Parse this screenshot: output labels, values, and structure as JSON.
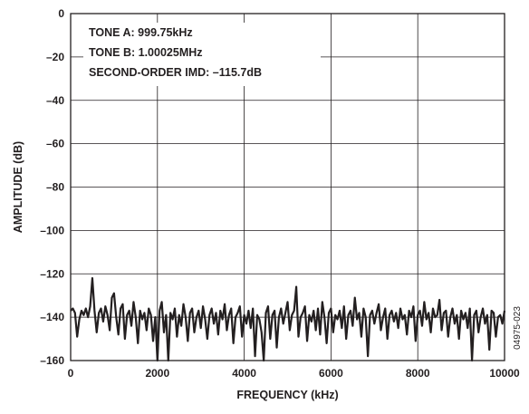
{
  "chart_data": {
    "type": "line",
    "title": "",
    "xlabel": "FREQUENCY (kHz)",
    "ylabel": "AMPLITUDE (dB)",
    "xlim": [
      0,
      10000
    ],
    "ylim": [
      -160,
      0
    ],
    "xticks": [
      0,
      2000,
      4000,
      6000,
      8000,
      10000
    ],
    "yticks": [
      0,
      -20,
      -40,
      -60,
      -80,
      -100,
      -120,
      -140,
      -160
    ],
    "grid": true,
    "annotations": [
      "TONE A: 999.75kHz",
      "TONE B: 1.00025MHz",
      "SECOND-ORDER IMD: –115.7dB"
    ],
    "figure_id": "04975-023",
    "series": [
      {
        "color": "#231f20",
        "x": [
          0,
          50,
          100,
          150,
          200,
          250,
          300,
          350,
          400,
          450,
          500,
          550,
          600,
          650,
          700,
          750,
          800,
          850,
          900,
          950,
          1000,
          1050,
          1100,
          1150,
          1200,
          1250,
          1300,
          1350,
          1400,
          1450,
          1500,
          1550,
          1600,
          1650,
          1700,
          1750,
          1800,
          1850,
          1900,
          1950,
          2000,
          2050,
          2100,
          2150,
          2200,
          2250,
          2300,
          2350,
          2400,
          2450,
          2500,
          2550,
          2600,
          2650,
          2700,
          2750,
          2800,
          2850,
          2900,
          2950,
          3000,
          3050,
          3100,
          3150,
          3200,
          3250,
          3300,
          3350,
          3400,
          3450,
          3500,
          3550,
          3600,
          3650,
          3700,
          3750,
          3800,
          3850,
          3900,
          3950,
          4000,
          4050,
          4100,
          4150,
          4200,
          4250,
          4300,
          4350,
          4400,
          4450,
          4500,
          4550,
          4600,
          4650,
          4700,
          4750,
          4800,
          4850,
          4900,
          4950,
          5000,
          5050,
          5100,
          5150,
          5200,
          5250,
          5300,
          5350,
          5400,
          5450,
          5500,
          5550,
          5600,
          5650,
          5700,
          5750,
          5800,
          5850,
          5900,
          5950,
          6000,
          6050,
          6100,
          6150,
          6200,
          6250,
          6300,
          6350,
          6400,
          6450,
          6500,
          6550,
          6600,
          6650,
          6700,
          6750,
          6800,
          6850,
          6900,
          6950,
          7000,
          7050,
          7100,
          7150,
          7200,
          7250,
          7300,
          7350,
          7400,
          7450,
          7500,
          7550,
          7600,
          7650,
          7700,
          7750,
          7800,
          7850,
          7900,
          7950,
          8000,
          8050,
          8100,
          8150,
          8200,
          8250,
          8300,
          8350,
          8400,
          8450,
          8500,
          8550,
          8600,
          8650,
          8700,
          8750,
          8800,
          8850,
          8900,
          8950,
          9000,
          9050,
          9100,
          9150,
          9200,
          9250,
          9300,
          9350,
          9400,
          9450,
          9500,
          9550,
          9600,
          9650,
          9700,
          9750,
          9800,
          9850,
          9900,
          9950,
          10000
        ],
        "y": [
          -137,
          -136,
          -138,
          -149,
          -141,
          -137,
          -139,
          -136,
          -140,
          -135,
          -122,
          -137,
          -147,
          -138,
          -136,
          -142,
          -135,
          -139,
          -146,
          -131,
          -129,
          -140,
          -148,
          -136,
          -134,
          -150,
          -139,
          -137,
          -144,
          -133,
          -140,
          -152,
          -137,
          -141,
          -138,
          -146,
          -136,
          -139,
          -151,
          -140,
          -160,
          -137,
          -133,
          -147,
          -139,
          -160,
          -138,
          -141,
          -136,
          -149,
          -139,
          -144,
          -134,
          -140,
          -151,
          -138,
          -136,
          -147,
          -140,
          -137,
          -145,
          -135,
          -141,
          -150,
          -139,
          -136,
          -143,
          -138,
          -148,
          -137,
          -141,
          -134,
          -146,
          -139,
          -136,
          -152,
          -140,
          -138,
          -135,
          -149,
          -139,
          -143,
          -137,
          -145,
          -136,
          -158,
          -139,
          -141,
          -147,
          -160,
          -138,
          -135,
          -150,
          -139,
          -137,
          -154,
          -140,
          -136,
          -143,
          -138,
          -133,
          -146,
          -139,
          -137,
          -126,
          -149,
          -140,
          -138,
          -135,
          -151,
          -139,
          -142,
          -137,
          -146,
          -136,
          -148,
          -133,
          -140,
          -152,
          -138,
          -136,
          -147,
          -139,
          -141,
          -137,
          -145,
          -135,
          -150,
          -139,
          -137,
          -144,
          -131,
          -141,
          -138,
          -149,
          -136,
          -140,
          -158,
          -139,
          -137,
          -143,
          -138,
          -134,
          -146,
          -140,
          -136,
          -150,
          -139,
          -137,
          -142,
          -138,
          -145,
          -136,
          -141,
          -139,
          -148,
          -137,
          -140,
          -135,
          -151,
          -139,
          -137,
          -144,
          -133,
          -141,
          -138,
          -147,
          -136,
          -140,
          -139,
          -132,
          -146,
          -138,
          -137,
          -149,
          -140,
          -136,
          -143,
          -139,
          -150,
          -137,
          -141,
          -138,
          -145,
          -136,
          -160,
          -139,
          -137,
          -147,
          -140,
          -136,
          -143,
          -139,
          -155,
          -137,
          -138,
          -149,
          -140,
          -139,
          -143,
          -137
        ]
      }
    ]
  }
}
